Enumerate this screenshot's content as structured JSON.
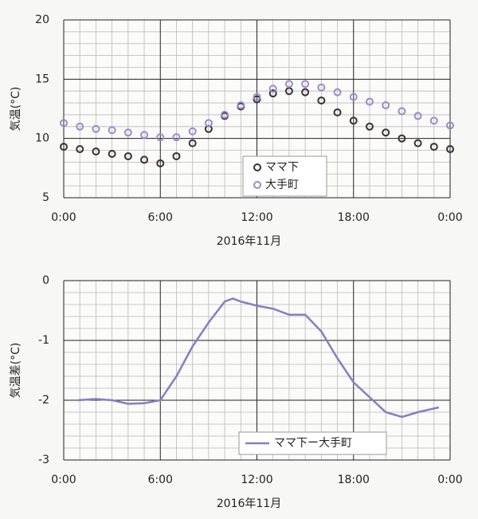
{
  "chart_data": [
    {
      "type": "scatter",
      "xlabel": "2016年11月",
      "ylabel": "気温(°C)",
      "x": [
        0,
        1,
        2,
        3,
        4,
        5,
        6,
        7,
        8,
        9,
        10,
        11,
        12,
        13,
        14,
        15,
        16,
        17,
        18,
        19,
        20,
        21,
        22,
        23,
        24
      ],
      "series": [
        {
          "name": "ママ下",
          "color": "#3a3038",
          "values": [
            9.3,
            9.1,
            8.9,
            8.7,
            8.5,
            8.2,
            7.9,
            8.5,
            9.6,
            10.8,
            11.9,
            12.7,
            13.3,
            13.8,
            14.0,
            13.9,
            13.2,
            12.2,
            11.5,
            11.0,
            10.5,
            10.0,
            9.6,
            9.3,
            9.1
          ]
        },
        {
          "name": "大手町",
          "color": "#9c8cc4",
          "values": [
            11.3,
            11.0,
            10.8,
            10.7,
            10.5,
            10.3,
            10.1,
            10.1,
            10.6,
            11.3,
            12.0,
            12.8,
            13.5,
            14.2,
            14.6,
            14.6,
            14.3,
            13.9,
            13.5,
            13.1,
            12.8,
            12.3,
            11.9,
            11.5,
            11.1
          ]
        }
      ],
      "xlim": [
        0,
        24
      ],
      "xticks": [
        {
          "value": 0,
          "label": "0:00"
        },
        {
          "value": 6,
          "label": "6:00"
        },
        {
          "value": 12,
          "label": "12:00"
        },
        {
          "value": 18,
          "label": "18:00"
        },
        {
          "value": 24,
          "label": "0:00"
        }
      ],
      "ylim": [
        5,
        20
      ],
      "yticks": [
        5,
        10,
        15,
        20
      ],
      "grid": true,
      "legend": "lower center"
    },
    {
      "type": "line",
      "xlabel": "2016年11月",
      "ylabel": "気温差(°C)",
      "x": [
        0.85,
        2,
        3,
        4,
        5,
        6,
        7,
        8,
        9,
        10,
        10.5,
        11,
        12,
        13,
        14,
        15,
        16,
        17,
        18,
        19,
        20,
        21,
        22,
        23.3
      ],
      "series": [
        {
          "name": "ママ下ー大手町",
          "color": "#8a7cc0",
          "values": [
            -2.0,
            -1.98,
            -2.0,
            -2.06,
            -2.05,
            -2.0,
            -1.6,
            -1.1,
            -0.7,
            -0.35,
            -0.3,
            -0.35,
            -0.42,
            -0.47,
            -0.57,
            -0.57,
            -0.85,
            -1.3,
            -1.7,
            -1.95,
            -2.2,
            -2.28,
            -2.2,
            -2.12
          ]
        }
      ],
      "xlim": [
        0,
        24
      ],
      "xticks": [
        {
          "value": 0,
          "label": "0:00"
        },
        {
          "value": 6,
          "label": "6:00"
        },
        {
          "value": 12,
          "label": "12:00"
        },
        {
          "value": 18,
          "label": "18:00"
        },
        {
          "value": 24,
          "label": "0:00"
        }
      ],
      "ylim": [
        -3,
        0
      ],
      "yticks": [
        -3,
        -2,
        -1,
        0
      ],
      "grid": true,
      "legend": "lower center"
    }
  ]
}
